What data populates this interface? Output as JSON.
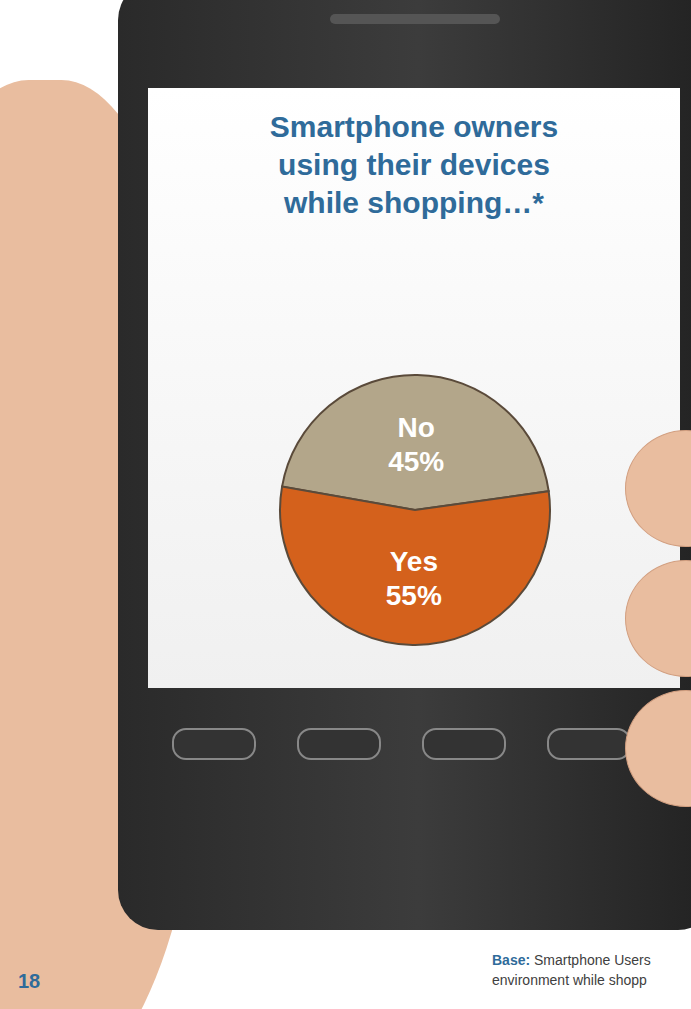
{
  "chart_data": {
    "type": "pie",
    "title": "Smartphone owners using their devices while shopping…*",
    "categories": [
      "No",
      "Yes"
    ],
    "values": [
      45,
      55
    ],
    "value_labels": [
      "45%",
      "55%"
    ],
    "colors": [
      "#b3a68a",
      "#d4611c"
    ],
    "data_labels": true
  },
  "page_number": "18",
  "footnote_label": "Base:",
  "footnote": [
    "Smartphone Users",
    "environment while shopp"
  ]
}
